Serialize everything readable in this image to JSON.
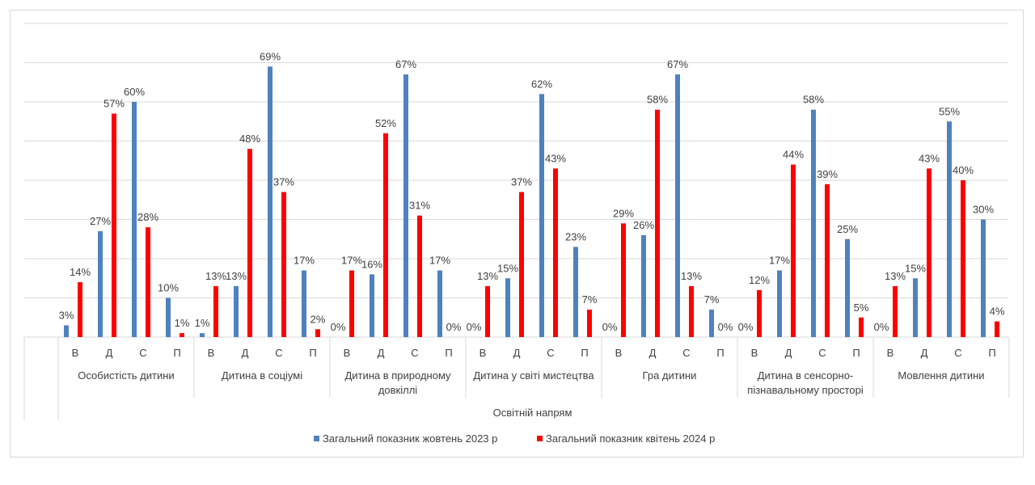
{
  "chart_data": {
    "type": "bar",
    "xlabel": "Освітній  напрям",
    "ylabel": "",
    "ylim": [
      0,
      80
    ],
    "grid": true,
    "legend_position": "bottom",
    "groups": [
      {
        "name": "Особистість дитини",
        "lines": [
          "Особистість дитини"
        ]
      },
      {
        "name": "Дитина в соціумі",
        "lines": [
          "Дитина в соціумі"
        ]
      },
      {
        "name": "Дитина в природному довкіллі",
        "lines": [
          "Дитина в природному",
          "довкіллі"
        ]
      },
      {
        "name": "Дитина у світі мистецтва",
        "lines": [
          "Дитина у світі мистецтва"
        ]
      },
      {
        "name": "Гра дитини",
        "lines": [
          "Гра дитини"
        ]
      },
      {
        "name": "Дитина в сенсорно-пізнавальному просторі",
        "lines": [
          "Дитина в сенсорно-",
          "пізнавальному просторі"
        ]
      },
      {
        "name": "Мовлення дитини",
        "lines": [
          "Мовлення       дитини"
        ]
      }
    ],
    "categories": [
      "В",
      "Д",
      "С",
      "П"
    ],
    "series": [
      {
        "name": "Загальний показник жовтень 2023 р",
        "color": "#4f81bd",
        "values": [
          [
            3,
            27,
            60,
            10
          ],
          [
            1,
            13,
            69,
            17
          ],
          [
            0,
            16,
            67,
            17
          ],
          [
            0,
            15,
            62,
            23
          ],
          [
            0,
            26,
            67,
            7
          ],
          [
            0,
            17,
            58,
            25
          ],
          [
            0,
            15,
            55,
            30
          ]
        ]
      },
      {
        "name": "Загальний показник  квітень 2024 р",
        "color": "#ff0000",
        "values": [
          [
            14,
            57,
            28,
            1
          ],
          [
            13,
            48,
            37,
            2
          ],
          [
            17,
            52,
            31,
            0
          ],
          [
            13,
            37,
            43,
            7
          ],
          [
            29,
            58,
            13,
            0
          ],
          [
            12,
            44,
            39,
            5
          ],
          [
            13,
            43,
            40,
            4
          ]
        ]
      }
    ]
  }
}
